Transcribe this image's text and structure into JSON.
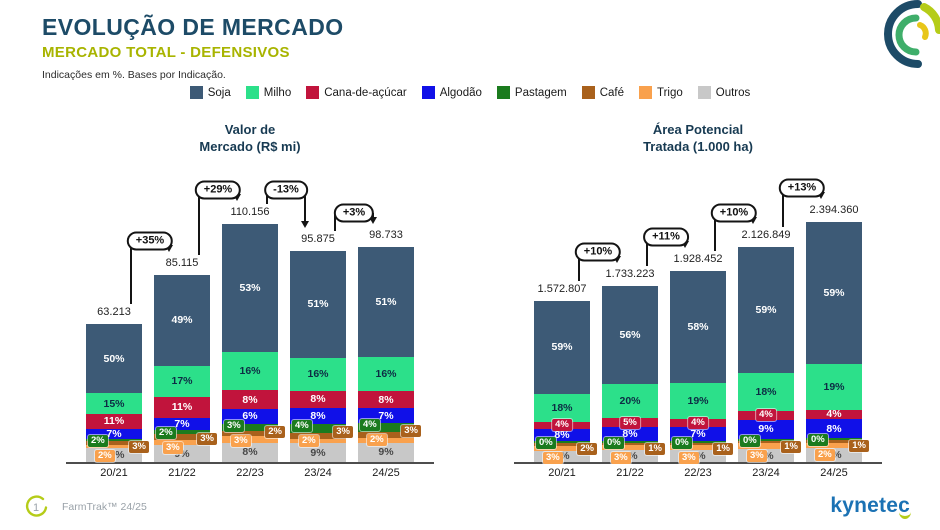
{
  "header": {
    "title": "EVOLUÇÃO DE MERCADO",
    "subtitle": "MERCADO TOTAL - DEFENSIVOS",
    "note": "Indicações em %. Bases por Indicação."
  },
  "legend": [
    {
      "label": "Soja",
      "color": "#3D5A76"
    },
    {
      "label": "Milho",
      "color": "#2CE08A"
    },
    {
      "label": "Cana-de-açúcar",
      "color": "#C1143C"
    },
    {
      "label": "Algodão",
      "color": "#1010E8"
    },
    {
      "label": "Pastagem",
      "color": "#1B7B1E"
    },
    {
      "label": "Café",
      "color": "#A9611C"
    },
    {
      "label": "Trigo",
      "color": "#F9A14D"
    },
    {
      "label": "Outros",
      "color": "#C8C8C8"
    }
  ],
  "chart_data": [
    {
      "type": "bar",
      "stacked": true,
      "units": "percent of total, bars scaled by total value",
      "title": "Valor de Mercado (R$ mi)",
      "title_lines": [
        "Valor de",
        "Mercado (R$ mi)"
      ],
      "categories": [
        "20/21",
        "21/22",
        "22/23",
        "23/24",
        "24/25"
      ],
      "totals": [
        63213,
        85115,
        110156,
        95875,
        98733
      ],
      "total_labels": [
        "63.213",
        "85.115",
        "110.156",
        "95.875",
        "98.733"
      ],
      "growth_labels": [
        "+35%",
        "+29%",
        "-13%",
        "+3%"
      ],
      "series": [
        {
          "name": "Soja",
          "values": [
            50,
            49,
            53,
            51,
            51
          ]
        },
        {
          "name": "Milho",
          "values": [
            15,
            17,
            16,
            16,
            16
          ]
        },
        {
          "name": "Cana-de-açúcar",
          "values": [
            11,
            11,
            8,
            8,
            8
          ]
        },
        {
          "name": "Algodão",
          "values": [
            7,
            7,
            6,
            8,
            7
          ]
        },
        {
          "name": "Pastagem",
          "values": [
            2,
            2,
            3,
            4,
            4
          ]
        },
        {
          "name": "Café",
          "values": [
            3,
            3,
            2,
            3,
            3
          ]
        },
        {
          "name": "Trigo",
          "values": [
            2,
            3,
            3,
            2,
            2
          ]
        },
        {
          "name": "Outros",
          "values": [
            10,
            9,
            8,
            9,
            9
          ]
        }
      ]
    },
    {
      "type": "bar",
      "stacked": true,
      "units": "percent of total, bars scaled by total value",
      "title": "Área Potencial Tratada (1.000 ha)",
      "title_lines": [
        "Área Potencial",
        "Tratada (1.000 ha)"
      ],
      "categories": [
        "20/21",
        "21/22",
        "22/23",
        "23/24",
        "24/25"
      ],
      "totals": [
        1572807,
        1733223,
        1928452,
        2126849,
        2394360
      ],
      "total_labels": [
        "1.572.807",
        "1.733.223",
        "1.928.452",
        "2.126.849",
        "2.394.360"
      ],
      "growth_labels": [
        "+10%",
        "+11%",
        "+10%",
        "+13%"
      ],
      "series": [
        {
          "name": "Soja",
          "values": [
            59,
            56,
            58,
            59,
            59
          ]
        },
        {
          "name": "Milho",
          "values": [
            18,
            20,
            19,
            18,
            19
          ]
        },
        {
          "name": "Cana-de-açúcar",
          "values": [
            4,
            5,
            4,
            4,
            4
          ]
        },
        {
          "name": "Algodão",
          "values": [
            8,
            8,
            7,
            9,
            8
          ]
        },
        {
          "name": "Pastagem",
          "values": [
            0,
            0,
            0,
            0,
            0
          ]
        },
        {
          "name": "Café",
          "values": [
            2,
            1,
            1,
            1,
            1
          ]
        },
        {
          "name": "Trigo",
          "values": [
            3,
            3,
            3,
            3,
            2
          ]
        },
        {
          "name": "Outros",
          "values": [
            7,
            7,
            6,
            6,
            6
          ]
        }
      ]
    }
  ],
  "footer": {
    "page": "1",
    "product": "FarmTrak™ 24/25",
    "brand": "kynetec"
  }
}
